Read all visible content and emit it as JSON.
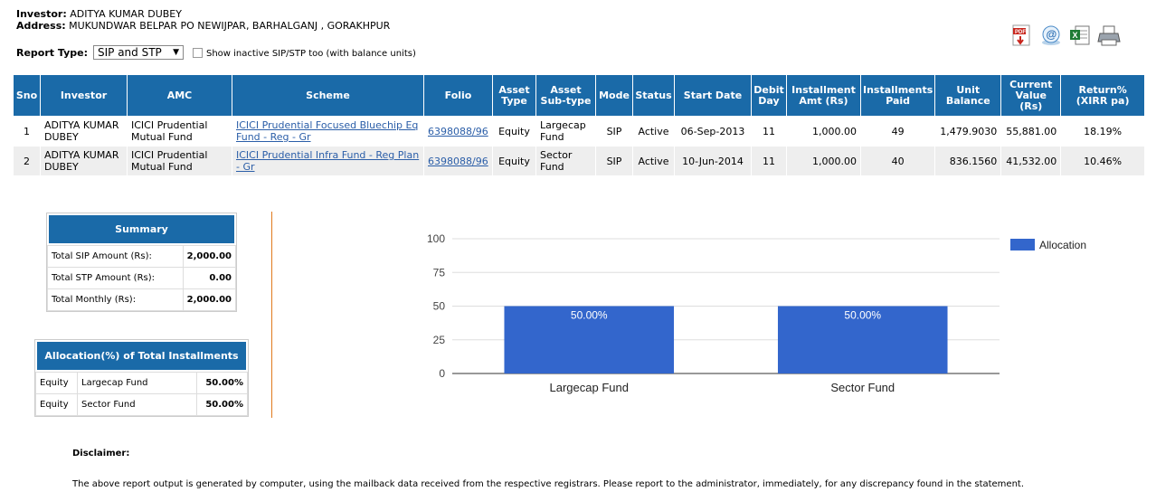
{
  "header": {
    "investor_label": "Investor:",
    "investor_name": "ADITYA KUMAR DUBEY",
    "address_label": "Address:",
    "address": "MUKUNDWAR BELPAR PO NEWIJPAR, BARHALGANJ , GORAKHPUR"
  },
  "report_type": {
    "label": "Report Type:",
    "selected": "SIP and STP",
    "inactive_label": "Show inactive SIP/STP too (with balance units)"
  },
  "toolbar_icons": [
    "pdf-icon",
    "email-icon",
    "excel-icon",
    "print-icon"
  ],
  "table": {
    "headers": [
      "Sno",
      "Investor",
      "AMC",
      "Scheme",
      "Folio",
      "Asset Type",
      "Asset Sub-type",
      "Mode",
      "Status",
      "Start Date",
      "Debit Day",
      "Installment Amt (Rs)",
      "Installments Paid",
      "Unit Balance",
      "Current Value (Rs)",
      "Return% (XIRR pa)"
    ],
    "rows": [
      {
        "sno": "1",
        "investor": "ADITYA KUMAR DUBEY",
        "amc": "ICICI Prudential Mutual Fund",
        "scheme": "ICICI Prudential Focused Bluechip Eq Fund - Reg - Gr",
        "folio": "6398088/96",
        "asset_type": "Equity",
        "sub_type": "Largecap Fund",
        "mode": "SIP",
        "status": "Active",
        "start_date": "06-Sep-2013",
        "debit_day": "11",
        "amount": "1,000.00",
        "paid": "49",
        "units": "1,479.9030",
        "value": "55,881.00",
        "return": "18.19%"
      },
      {
        "sno": "2",
        "investor": "ADITYA KUMAR DUBEY",
        "amc": "ICICI Prudential Mutual Fund",
        "scheme": "ICICI Prudential Infra Fund - Reg Plan - Gr",
        "folio": "6398088/96",
        "asset_type": "Equity",
        "sub_type": "Sector Fund",
        "mode": "SIP",
        "status": "Active",
        "start_date": "10-Jun-2014",
        "debit_day": "11",
        "amount": "1,000.00",
        "paid": "40",
        "units": "836.1560",
        "value": "41,532.00",
        "return": "10.46%"
      }
    ]
  },
  "summary": {
    "title": "Summary",
    "rows": [
      {
        "label": "Total SIP Amount (Rs):",
        "value": "2,000.00"
      },
      {
        "label": "Total STP Amount (Rs):",
        "value": "0.00"
      },
      {
        "label": "Total Monthly (Rs):",
        "value": "2,000.00"
      }
    ]
  },
  "allocation": {
    "title": "Allocation(%) of Total Installments",
    "rows": [
      {
        "type": "Equity",
        "sub": "Largecap Fund",
        "pct": "50.00%"
      },
      {
        "type": "Equity",
        "sub": "Sector Fund",
        "pct": "50.00%"
      }
    ]
  },
  "chart_data": {
    "type": "bar",
    "categories": [
      "Largecap Fund",
      "Sector Fund"
    ],
    "series": [
      {
        "name": "Allocation",
        "values": [
          50,
          50
        ],
        "labels": [
          "50.00%",
          "50.00%"
        ]
      }
    ],
    "ylim": [
      0,
      100
    ],
    "yticks": [
      0,
      25,
      50,
      75,
      100
    ],
    "legend": "right",
    "bar_color": "#3366cc"
  },
  "disclaimer": {
    "title": "Disclaimer:",
    "text": "The above report output is generated by computer, using the mailback data received from the respective registrars. Please report to the administrator, immediately, for any discrepancy found in the statement."
  }
}
